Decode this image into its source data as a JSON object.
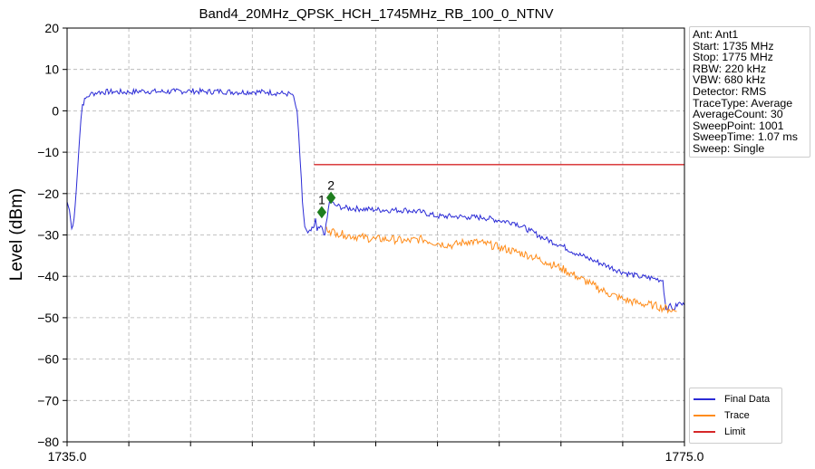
{
  "chart_data": {
    "type": "line",
    "title": "Band4_20MHz_QPSK_HCH_1745MHz_RB_100_0_NTNV",
    "xlabel": "",
    "ylabel": "Level (dBm)",
    "xlim": [
      1735.0,
      1775.0
    ],
    "ylim": [
      -80,
      20
    ],
    "x_tick_labels": [
      "1735.0",
      "1775.0"
    ],
    "x_minor_ticks": [
      1739,
      1743,
      1747,
      1751,
      1755,
      1759,
      1763,
      1767,
      1771
    ],
    "y_ticks": [
      20,
      10,
      0,
      -10,
      -20,
      -30,
      -40,
      -50,
      -60,
      -70,
      -80
    ],
    "y_tick_labels": [
      "20",
      "10",
      "0",
      "−10",
      "−20",
      "−30",
      "−40",
      "−50",
      "−60",
      "−70",
      "−80"
    ],
    "grid": true,
    "legend_position": "lower-right",
    "series": [
      {
        "name": "Final Data",
        "color": "#2b2bd6",
        "points": [
          [
            1735.0,
            -22.0
          ],
          [
            1735.15,
            -24.0
          ],
          [
            1735.3,
            -28.5
          ],
          [
            1735.45,
            -26.0
          ],
          [
            1735.6,
            -19.0
          ],
          [
            1735.75,
            -10.0
          ],
          [
            1735.9,
            -2.0
          ],
          [
            1736.0,
            1.5
          ],
          [
            1736.2,
            3.0
          ],
          [
            1736.5,
            4.0
          ],
          [
            1737.0,
            4.5
          ],
          [
            1738.0,
            4.6
          ],
          [
            1739.0,
            4.5
          ],
          [
            1740.0,
            4.8
          ],
          [
            1741.0,
            4.6
          ],
          [
            1742.0,
            4.7
          ],
          [
            1743.0,
            4.8
          ],
          [
            1744.0,
            4.6
          ],
          [
            1745.0,
            4.7
          ],
          [
            1746.0,
            4.5
          ],
          [
            1747.0,
            4.6
          ],
          [
            1748.0,
            4.5
          ],
          [
            1749.0,
            4.2
          ],
          [
            1749.6,
            4.0
          ],
          [
            1749.9,
            0.0
          ],
          [
            1750.1,
            -12.0
          ],
          [
            1750.25,
            -22.0
          ],
          [
            1750.4,
            -28.0
          ],
          [
            1750.6,
            -29.5
          ],
          [
            1750.8,
            -29.0
          ],
          [
            1751.0,
            -28.0
          ],
          [
            1751.1,
            -26.0
          ],
          [
            1751.2,
            -29.0
          ],
          [
            1751.5,
            -28.0
          ],
          [
            1751.7,
            -30.0
          ],
          [
            1752.0,
            -22.0
          ],
          [
            1752.5,
            -23.0
          ],
          [
            1753.0,
            -23.5
          ],
          [
            1754.0,
            -23.7
          ],
          [
            1755.0,
            -23.9
          ],
          [
            1756.0,
            -24.0
          ],
          [
            1757.0,
            -24.0
          ],
          [
            1758.0,
            -24.5
          ],
          [
            1759.0,
            -25.5
          ],
          [
            1760.0,
            -25.5
          ],
          [
            1761.0,
            -25.7
          ],
          [
            1762.0,
            -25.8
          ],
          [
            1763.0,
            -26.5
          ],
          [
            1764.0,
            -27.0
          ],
          [
            1765.0,
            -29.0
          ],
          [
            1766.0,
            -31.0
          ],
          [
            1767.0,
            -32.5
          ],
          [
            1768.0,
            -34.5
          ],
          [
            1769.0,
            -36.0
          ],
          [
            1770.0,
            -37.5
          ],
          [
            1771.0,
            -39.0
          ],
          [
            1772.0,
            -40.0
          ],
          [
            1773.0,
            -40.5
          ],
          [
            1773.6,
            -41.0
          ],
          [
            1773.8,
            -48.0
          ],
          [
            1774.0,
            -47.0
          ],
          [
            1774.3,
            -48.0
          ],
          [
            1774.6,
            -46.5
          ],
          [
            1775.0,
            -47.0
          ]
        ]
      },
      {
        "name": "Trace",
        "color": "#ff8c1a",
        "points": [
          [
            1751.8,
            -28.0
          ],
          [
            1752.0,
            -29.0
          ],
          [
            1752.5,
            -29.5
          ],
          [
            1753.0,
            -30.0
          ],
          [
            1754.0,
            -30.5
          ],
          [
            1755.0,
            -31.0
          ],
          [
            1756.0,
            -31.0
          ],
          [
            1757.0,
            -31.5
          ],
          [
            1758.0,
            -31.0
          ],
          [
            1759.0,
            -32.0
          ],
          [
            1760.0,
            -32.5
          ],
          [
            1761.0,
            -31.5
          ],
          [
            1762.0,
            -32.0
          ],
          [
            1763.0,
            -33.0
          ],
          [
            1764.0,
            -34.0
          ],
          [
            1765.0,
            -35.0
          ],
          [
            1766.0,
            -36.5
          ],
          [
            1767.0,
            -38.0
          ],
          [
            1768.0,
            -40.0
          ],
          [
            1769.0,
            -42.0
          ],
          [
            1770.0,
            -44.0
          ],
          [
            1771.0,
            -45.5
          ],
          [
            1772.0,
            -46.5
          ],
          [
            1773.0,
            -47.0
          ],
          [
            1774.0,
            -48.0
          ],
          [
            1774.5,
            -48.5
          ]
        ]
      },
      {
        "name": "Limit",
        "color": "#d62728",
        "points": [
          [
            1751.0,
            -13.0
          ],
          [
            1775.0,
            -13.0
          ]
        ]
      }
    ],
    "markers": [
      {
        "label": "1",
        "x": 1751.5,
        "y": -24.5,
        "color": "#1e7d1e"
      },
      {
        "label": "2",
        "x": 1752.1,
        "y": -21.0,
        "color": "#1e7d1e"
      }
    ]
  },
  "info_panel": {
    "lines": [
      "Ant: Ant1",
      "Start: 1735 MHz",
      "Stop: 1775 MHz",
      "RBW: 220 kHz",
      "VBW: 680 kHz",
      "Detector: RMS",
      "TraceType: Average",
      "AverageCount: 30",
      "SweepPoint: 1001",
      "SweepTime: 1.07 ms",
      "Sweep: Single"
    ]
  },
  "legend": {
    "items": [
      {
        "label": "Final Data",
        "color": "#2b2bd6"
      },
      {
        "label": "Trace",
        "color": "#ff8c1a"
      },
      {
        "label": "Limit",
        "color": "#d62728"
      }
    ]
  }
}
